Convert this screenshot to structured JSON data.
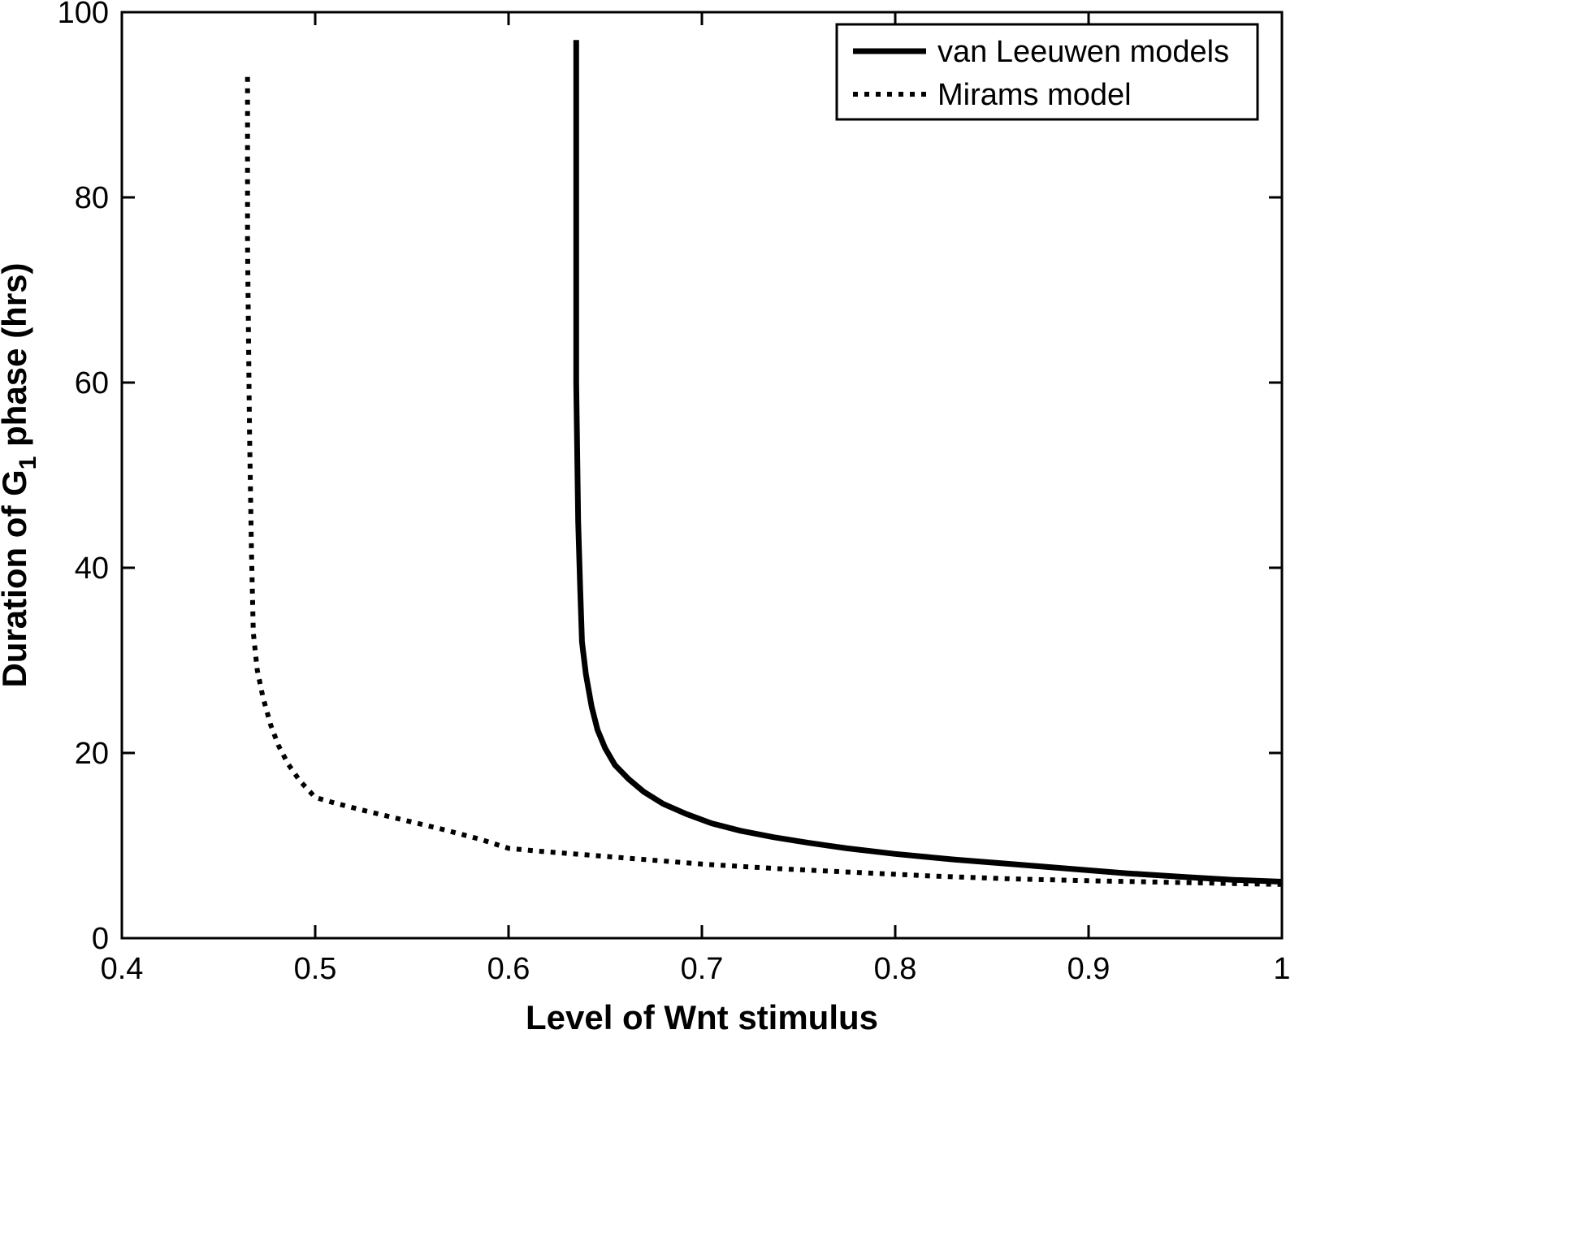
{
  "figure": {
    "background": "#ffffff",
    "axis_color": "#000000"
  },
  "chart_data": {
    "type": "line",
    "title": "",
    "xlabel": "Level of Wnt stimulus",
    "ylabel": "Duration of G_1 phase (hrs)",
    "ylabel_parts": {
      "pre": "Duration of G",
      "sub": "1",
      "post": " phase (hrs)"
    },
    "xlim": [
      0.4,
      1.0
    ],
    "ylim": [
      0,
      100
    ],
    "xticks": [
      0.4,
      0.5,
      0.6,
      0.7,
      0.8,
      0.9,
      1
    ],
    "xtick_labels": [
      "0.4",
      "0.5",
      "0.6",
      "0.7",
      "0.8",
      "0.9",
      "1"
    ],
    "yticks": [
      0,
      20,
      40,
      60,
      80,
      100
    ],
    "ytick_labels": [
      "0",
      "20",
      "40",
      "60",
      "80",
      "100"
    ],
    "grid": false,
    "legend_position": "top-right",
    "series": [
      {
        "name": "van Leeuwen models",
        "style": "solid",
        "color": "#000000",
        "line_width": 7,
        "points": [
          [
            0.635,
            97
          ],
          [
            0.635,
            80
          ],
          [
            0.635,
            60
          ],
          [
            0.636,
            45
          ],
          [
            0.637,
            38
          ],
          [
            0.638,
            32
          ],
          [
            0.64,
            28.5
          ],
          [
            0.643,
            25
          ],
          [
            0.646,
            22.5
          ],
          [
            0.65,
            20.5
          ],
          [
            0.655,
            18.7
          ],
          [
            0.662,
            17.2
          ],
          [
            0.67,
            15.8
          ],
          [
            0.68,
            14.5
          ],
          [
            0.692,
            13.4
          ],
          [
            0.705,
            12.4
          ],
          [
            0.72,
            11.6
          ],
          [
            0.737,
            10.9
          ],
          [
            0.755,
            10.3
          ],
          [
            0.775,
            9.7
          ],
          [
            0.8,
            9.1
          ],
          [
            0.83,
            8.5
          ],
          [
            0.86,
            8.0
          ],
          [
            0.89,
            7.5
          ],
          [
            0.92,
            7.0
          ],
          [
            0.95,
            6.6
          ],
          [
            0.975,
            6.3
          ],
          [
            1.0,
            6.1
          ]
        ]
      },
      {
        "name": "Mirams model",
        "style": "dotted",
        "color": "#000000",
        "line_width": 6,
        "points": [
          [
            0.465,
            93
          ],
          [
            0.465,
            75
          ],
          [
            0.466,
            55
          ],
          [
            0.467,
            42
          ],
          [
            0.468,
            33
          ],
          [
            0.47,
            29
          ],
          [
            0.473,
            26
          ],
          [
            0.477,
            23
          ],
          [
            0.481,
            20.8
          ],
          [
            0.486,
            18.8
          ],
          [
            0.492,
            17.0
          ],
          [
            0.5,
            15.2
          ],
          [
            0.51,
            14.6
          ],
          [
            0.525,
            13.8
          ],
          [
            0.545,
            12.8
          ],
          [
            0.565,
            11.8
          ],
          [
            0.585,
            10.7
          ],
          [
            0.6,
            9.7
          ],
          [
            0.615,
            9.4
          ],
          [
            0.64,
            9.0
          ],
          [
            0.67,
            8.5
          ],
          [
            0.7,
            8.0
          ],
          [
            0.74,
            7.5
          ],
          [
            0.78,
            7.1
          ],
          [
            0.82,
            6.7
          ],
          [
            0.86,
            6.4
          ],
          [
            0.9,
            6.2
          ],
          [
            0.95,
            6.0
          ],
          [
            1.0,
            5.8
          ]
        ]
      }
    ],
    "legend": [
      {
        "label": "van Leeuwen models",
        "style": "solid"
      },
      {
        "label": "Mirams model",
        "style": "dotted"
      }
    ]
  }
}
